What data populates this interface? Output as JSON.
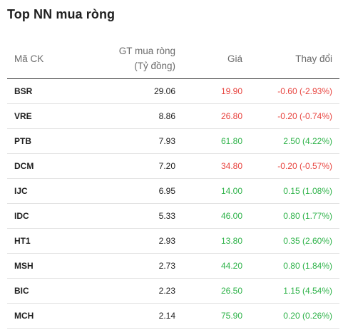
{
  "title": "Top NN mua ròng",
  "columns": {
    "symbol": "Mã CK",
    "value_line1": "GT mua ròng",
    "value_line2": "(Tỷ đồng)",
    "price": "Giá",
    "change": "Thay đổi"
  },
  "colors": {
    "up": "#2fb34a",
    "down": "#e8443f"
  },
  "rows": [
    {
      "symbol": "BSR",
      "value": "29.06",
      "price": "19.90",
      "change": "-0.60 (-2.93%)",
      "trend": "down"
    },
    {
      "symbol": "VRE",
      "value": "8.86",
      "price": "26.80",
      "change": "-0.20 (-0.74%)",
      "trend": "down"
    },
    {
      "symbol": "PTB",
      "value": "7.93",
      "price": "61.80",
      "change": "2.50 (4.22%)",
      "trend": "up"
    },
    {
      "symbol": "DCM",
      "value": "7.20",
      "price": "34.80",
      "change": "-0.20 (-0.57%)",
      "trend": "down"
    },
    {
      "symbol": "IJC",
      "value": "6.95",
      "price": "14.00",
      "change": "0.15 (1.08%)",
      "trend": "up"
    },
    {
      "symbol": "IDC",
      "value": "5.33",
      "price": "46.00",
      "change": "0.80 (1.77%)",
      "trend": "up"
    },
    {
      "symbol": "HT1",
      "value": "2.93",
      "price": "13.80",
      "change": "0.35 (2.60%)",
      "trend": "up"
    },
    {
      "symbol": "MSH",
      "value": "2.73",
      "price": "44.20",
      "change": "0.80 (1.84%)",
      "trend": "up"
    },
    {
      "symbol": "BIC",
      "value": "2.23",
      "price": "26.50",
      "change": "1.15 (4.54%)",
      "trend": "up"
    },
    {
      "symbol": "MCH",
      "value": "2.14",
      "price": "75.90",
      "change": "0.20 (0.26%)",
      "trend": "up"
    }
  ]
}
